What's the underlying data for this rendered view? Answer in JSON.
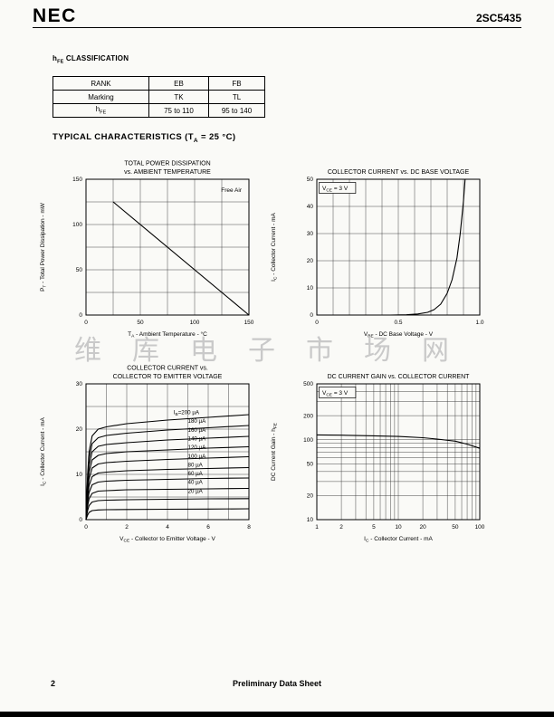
{
  "header": {
    "logo": "NEC",
    "part_number": "2SC5435"
  },
  "classification": {
    "heading": "h~FE~ CLASSIFICATION",
    "table": {
      "rows": [
        [
          "RANK",
          "EB",
          "FB"
        ],
        [
          "Marking",
          "TK",
          "TL"
        ],
        [
          "h~FE~",
          "75 to 110",
          "95 to 140"
        ]
      ]
    }
  },
  "section_title": "TYPICAL CHARACTERISTICS (T~A~ = 25 °C)",
  "watermark": "维库电子市场网",
  "footer": {
    "page_number": "2",
    "label": "Preliminary Data Sheet"
  },
  "colors": {
    "ink": "#000000",
    "paper": "#fafaf7",
    "watermark": "#c9c9c9"
  },
  "chart_data": [
    {
      "id": "power-dissipation",
      "type": "line",
      "title_lines": [
        "TOTAL POWER DISSIPATION",
        "vs. AMBIENT TEMPERATURE"
      ],
      "xlabel": "T~A~ - Ambient Temperature - °C",
      "ylabel": "P~T~ - Total Power Dissipation - mW",
      "xlim": [
        0,
        150
      ],
      "ylim": [
        0,
        150
      ],
      "xgrid": [
        25,
        50,
        75,
        100,
        125
      ],
      "ygrid": [
        25,
        50,
        75,
        100,
        125
      ],
      "xticks": [
        {
          "v": 0,
          "label": "0"
        },
        {
          "v": 50,
          "label": "50"
        },
        {
          "v": 100,
          "label": "100"
        },
        {
          "v": 150,
          "label": "150"
        }
      ],
      "yticks": [
        {
          "v": 0,
          "label": "0"
        },
        {
          "v": 50,
          "label": "50"
        },
        {
          "v": 100,
          "label": "100"
        },
        {
          "v": 150,
          "label": "150"
        }
      ],
      "annotation": {
        "text": "Free Air",
        "pos": "tr",
        "boxed": false
      },
      "series": [
        {
          "name": "derating",
          "x": [
            25,
            150
          ],
          "y": [
            125,
            0
          ]
        }
      ]
    },
    {
      "id": "ic-vbe",
      "type": "line",
      "title_lines": [
        "COLLECTOR CURRENT vs. DC BASE VOLTAGE"
      ],
      "xlabel": "V~BE~ - DC Base Voltage - V",
      "ylabel": "I~C~ - Collector Current - mA",
      "xlim": [
        0,
        1.0
      ],
      "ylim": [
        0,
        50
      ],
      "xgrid": [
        0.1,
        0.2,
        0.3,
        0.4,
        0.5,
        0.6,
        0.7,
        0.8,
        0.9
      ],
      "ygrid": [
        10,
        20,
        30,
        40
      ],
      "xticks": [
        {
          "v": 0,
          "label": "0"
        },
        {
          "v": 0.5,
          "label": "0.5"
        },
        {
          "v": 1.0,
          "label": "1.0"
        }
      ],
      "yticks": [
        {
          "v": 0,
          "label": "0"
        },
        {
          "v": 10,
          "label": "10"
        },
        {
          "v": 20,
          "label": "20"
        },
        {
          "v": 30,
          "label": "30"
        },
        {
          "v": 40,
          "label": "40"
        },
        {
          "v": 50,
          "label": "50"
        }
      ],
      "annotation": {
        "text": "V~CE~ = 3 V",
        "pos": "tl",
        "boxed": true
      },
      "series": [
        {
          "name": "ic",
          "x": [
            0,
            0.45,
            0.55,
            0.62,
            0.68,
            0.72,
            0.76,
            0.8,
            0.83,
            0.86,
            0.88,
            0.9,
            0.91
          ],
          "y": [
            0,
            0,
            0.1,
            0.4,
            1,
            2,
            4,
            8,
            13,
            21,
            30,
            42,
            50
          ]
        }
      ]
    },
    {
      "id": "ic-vce",
      "type": "line",
      "title_lines": [
        "COLLECTOR CURRENT vs.",
        "COLLECTOR TO EMITTER VOLTAGE"
      ],
      "xlabel": "V~CE~ - Collector to Emitter Voltage - V",
      "ylabel": "I~C~ - Collector Current - mA",
      "xlim": [
        0,
        8
      ],
      "ylim": [
        0,
        30
      ],
      "xgrid": [
        1,
        2,
        3,
        4,
        5,
        6,
        7
      ],
      "ygrid": [
        5,
        10,
        15,
        20,
        25
      ],
      "xticks": [
        {
          "v": 0,
          "label": "0"
        },
        {
          "v": 2,
          "label": "2"
        },
        {
          "v": 4,
          "label": "4"
        },
        {
          "v": 6,
          "label": "6"
        },
        {
          "v": 8,
          "label": "8"
        }
      ],
      "yticks": [
        {
          "v": 0,
          "label": "0"
        },
        {
          "v": 10,
          "label": "10"
        },
        {
          "v": 20,
          "label": "20"
        },
        {
          "v": 30,
          "label": "30"
        }
      ],
      "labels": {
        "x": 5.0,
        "x_first": 4.3,
        "y0": 23.7,
        "dy": 1.93,
        "items": [
          "I~B~=200 µA",
          "180 µA",
          "160 µA",
          "140 µA",
          "120 µA",
          "100 µA",
          "80 µA",
          "60 µA",
          "40 µA",
          "20 µA"
        ]
      },
      "series": [
        {
          "name": "ib-200",
          "x": [
            0,
            0.08,
            0.15,
            0.3,
            0.6,
            1,
            2,
            4,
            6,
            8
          ],
          "y": [
            0,
            10,
            15,
            18.5,
            20,
            20.5,
            21.2,
            22,
            22.6,
            23.2
          ]
        },
        {
          "name": "ib-180",
          "x": [
            0,
            0.08,
            0.15,
            0.3,
            0.6,
            1,
            2,
            4,
            6,
            8
          ],
          "y": [
            0,
            9,
            13.5,
            16.8,
            18.1,
            18.6,
            19.1,
            19.8,
            20.3,
            20.8
          ]
        },
        {
          "name": "ib-160",
          "x": [
            0,
            0.08,
            0.15,
            0.3,
            0.6,
            1,
            2,
            4,
            6,
            8
          ],
          "y": [
            0,
            8,
            12,
            15,
            16.2,
            16.6,
            17,
            17.6,
            18,
            18.4
          ]
        },
        {
          "name": "ib-140",
          "x": [
            0,
            0.08,
            0.15,
            0.3,
            0.6,
            1,
            2,
            4,
            6,
            8
          ],
          "y": [
            0,
            7,
            10.5,
            13.2,
            14.2,
            14.6,
            15,
            15.4,
            15.8,
            16.1
          ]
        },
        {
          "name": "ib-120",
          "x": [
            0,
            0.08,
            0.15,
            0.3,
            0.6,
            1,
            2,
            4,
            6,
            8
          ],
          "y": [
            0,
            6,
            9,
            11.4,
            12.3,
            12.6,
            12.9,
            13.3,
            13.6,
            13.9
          ]
        },
        {
          "name": "ib-100",
          "x": [
            0,
            0.08,
            0.15,
            0.3,
            0.6,
            1,
            2,
            4,
            6,
            8
          ],
          "y": [
            0,
            5,
            7.5,
            9.5,
            10.3,
            10.5,
            10.8,
            11.1,
            11.3,
            11.5
          ]
        },
        {
          "name": "ib-80",
          "x": [
            0,
            0.08,
            0.15,
            0.3,
            0.6,
            1,
            2,
            4,
            6,
            8
          ],
          "y": [
            0,
            4,
            6,
            7.7,
            8.3,
            8.5,
            8.7,
            8.9,
            9.1,
            9.2
          ]
        },
        {
          "name": "ib-60",
          "x": [
            0,
            0.08,
            0.15,
            0.3,
            0.6,
            1,
            2,
            4,
            6,
            8
          ],
          "y": [
            0,
            3,
            4.6,
            5.8,
            6.3,
            6.4,
            6.6,
            6.7,
            6.8,
            6.9
          ]
        },
        {
          "name": "ib-40",
          "x": [
            0,
            0.08,
            0.15,
            0.3,
            0.6,
            1,
            2,
            4,
            6,
            8
          ],
          "y": [
            0,
            2,
            3.1,
            3.9,
            4.2,
            4.3,
            4.4,
            4.5,
            4.6,
            4.65
          ]
        },
        {
          "name": "ib-20",
          "x": [
            0,
            0.08,
            0.15,
            0.3,
            0.6,
            1,
            2,
            4,
            6,
            8
          ],
          "y": [
            0,
            1,
            1.6,
            2,
            2.15,
            2.2,
            2.25,
            2.3,
            2.35,
            2.4
          ]
        }
      ]
    },
    {
      "id": "hfe-ic",
      "type": "line",
      "xscale": "log",
      "yscale": "log",
      "title_lines": [
        "DC CURRENT GAIN vs. COLLECTOR CURRENT"
      ],
      "xlabel": "I~C~ - Collector Current - mA",
      "ylabel": "DC Current Gain - h~FE~",
      "xlim": [
        1,
        100
      ],
      "ylim": [
        10,
        500
      ],
      "xgrid": [
        2,
        3,
        4,
        5,
        6,
        7,
        8,
        9,
        10,
        20,
        30,
        40,
        50,
        60,
        70,
        80,
        90
      ],
      "ygrid": [
        20,
        30,
        40,
        50,
        60,
        70,
        80,
        90,
        100,
        200,
        300,
        400
      ],
      "xticks": [
        {
          "v": 1,
          "label": "1"
        },
        {
          "v": 2,
          "label": "2"
        },
        {
          "v": 5,
          "label": "5"
        },
        {
          "v": 10,
          "label": "10"
        },
        {
          "v": 20,
          "label": "20"
        },
        {
          "v": 50,
          "label": "50"
        },
        {
          "v": 100,
          "label": "100"
        }
      ],
      "yticks": [
        {
          "v": 10,
          "label": "10"
        },
        {
          "v": 20,
          "label": "20"
        },
        {
          "v": 50,
          "label": "50"
        },
        {
          "v": 100,
          "label": "100"
        },
        {
          "v": 200,
          "label": "200"
        },
        {
          "v": 500,
          "label": "500"
        }
      ],
      "annotation": {
        "text": "V~CE~ = 3 V",
        "pos": "tl",
        "boxed": true
      },
      "series": [
        {
          "name": "hfe",
          "x": [
            1,
            2,
            5,
            10,
            20,
            30,
            50,
            70,
            100
          ],
          "y": [
            115,
            114,
            112,
            110,
            106,
            102,
            96,
            88,
            78
          ]
        }
      ]
    }
  ]
}
